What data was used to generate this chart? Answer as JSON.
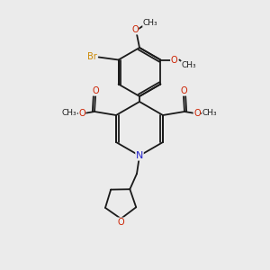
{
  "bg_color": "#ebebeb",
  "bond_color": "#1a1a1a",
  "N_color": "#2222cc",
  "O_color": "#cc2000",
  "Br_color": "#cc8800",
  "figsize": [
    3.0,
    3.0
  ],
  "dpi": 100,
  "lw": 1.3,
  "xlim": [
    -1.5,
    1.5
  ],
  "ylim": [
    -1.5,
    1.5
  ]
}
